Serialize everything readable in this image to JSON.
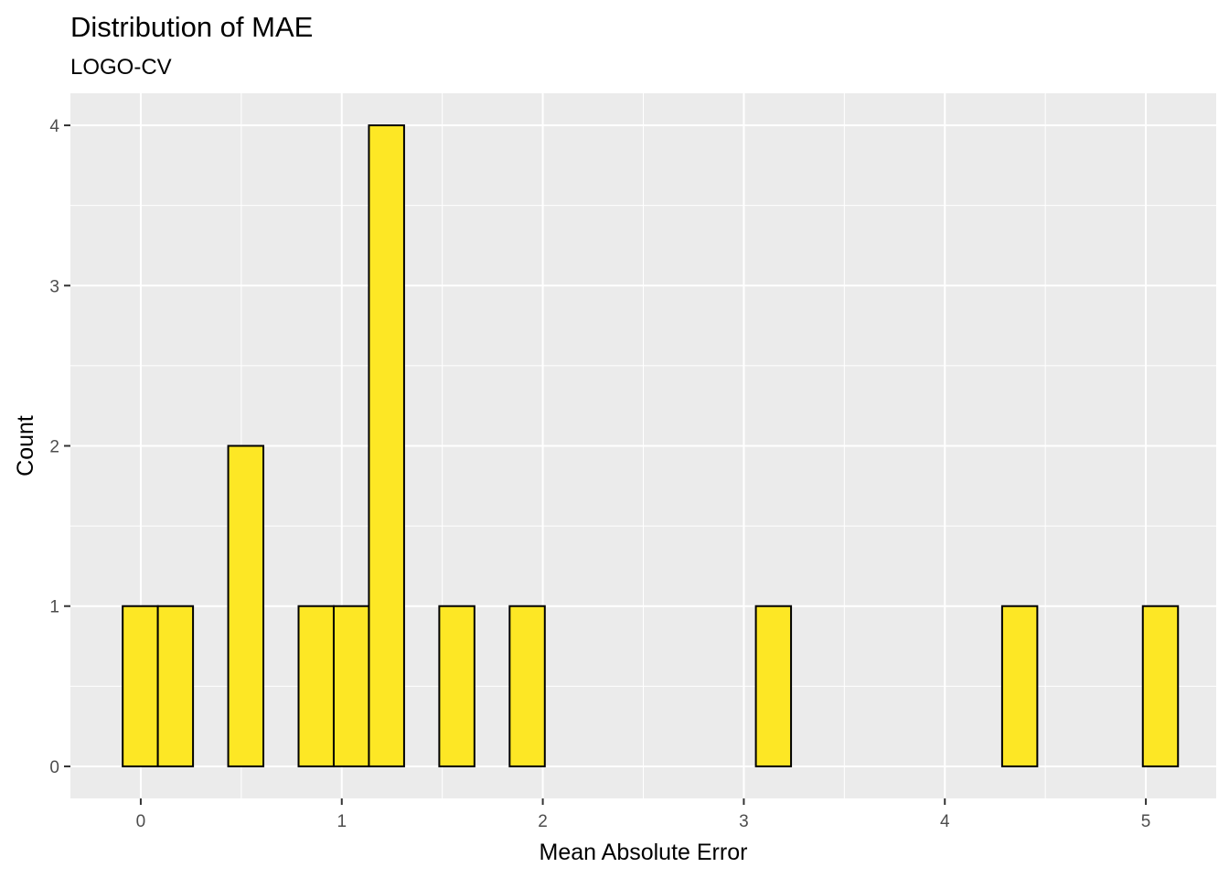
{
  "chart_data": {
    "type": "histogram",
    "title": "Distribution of MAE",
    "subtitle": "LOGO-CV",
    "xlabel": "Mean Absolute Error",
    "ylabel": "Count",
    "xlim": [
      -0.35,
      5.35
    ],
    "ylim": [
      -0.2,
      4.2
    ],
    "x_ticks": [
      0,
      1,
      2,
      3,
      4,
      5
    ],
    "y_ticks": [
      0,
      1,
      2,
      3,
      4
    ],
    "bin_width": 0.175,
    "bins": [
      {
        "x0": -0.09,
        "x1": 0.085,
        "count": 1
      },
      {
        "x0": 0.085,
        "x1": 0.26,
        "count": 1
      },
      {
        "x0": 0.26,
        "x1": 0.435,
        "count": 0
      },
      {
        "x0": 0.435,
        "x1": 0.61,
        "count": 2
      },
      {
        "x0": 0.61,
        "x1": 0.785,
        "count": 0
      },
      {
        "x0": 0.785,
        "x1": 0.96,
        "count": 1
      },
      {
        "x0": 0.96,
        "x1": 1.135,
        "count": 1
      },
      {
        "x0": 1.135,
        "x1": 1.31,
        "count": 4
      },
      {
        "x0": 1.31,
        "x1": 1.485,
        "count": 0
      },
      {
        "x0": 1.485,
        "x1": 1.66,
        "count": 1
      },
      {
        "x0": 1.66,
        "x1": 1.835,
        "count": 0
      },
      {
        "x0": 1.835,
        "x1": 2.01,
        "count": 1
      },
      {
        "x0": 2.01,
        "x1": 2.185,
        "count": 0
      },
      {
        "x0": 2.185,
        "x1": 2.36,
        "count": 0
      },
      {
        "x0": 2.36,
        "x1": 2.535,
        "count": 0
      },
      {
        "x0": 2.535,
        "x1": 2.71,
        "count": 0
      },
      {
        "x0": 2.71,
        "x1": 2.885,
        "count": 0
      },
      {
        "x0": 2.885,
        "x1": 3.06,
        "count": 0
      },
      {
        "x0": 3.06,
        "x1": 3.235,
        "count": 1
      },
      {
        "x0": 3.235,
        "x1": 3.41,
        "count": 0
      },
      {
        "x0": 3.41,
        "x1": 3.585,
        "count": 0
      },
      {
        "x0": 3.585,
        "x1": 3.76,
        "count": 0
      },
      {
        "x0": 3.76,
        "x1": 3.935,
        "count": 0
      },
      {
        "x0": 3.935,
        "x1": 4.11,
        "count": 0
      },
      {
        "x0": 4.11,
        "x1": 4.285,
        "count": 0
      },
      {
        "x0": 4.285,
        "x1": 4.46,
        "count": 1
      },
      {
        "x0": 4.46,
        "x1": 4.635,
        "count": 0
      },
      {
        "x0": 4.635,
        "x1": 4.81,
        "count": 0
      },
      {
        "x0": 4.81,
        "x1": 4.985,
        "count": 0
      },
      {
        "x0": 4.985,
        "x1": 5.16,
        "count": 1
      }
    ],
    "grid": true,
    "colors": {
      "bar_fill": "#FDE725",
      "bar_outline": "#000000",
      "panel_background": "#EBEBEB",
      "grid_line": "#FFFFFF",
      "tick_label": "#4D4D4D"
    }
  }
}
